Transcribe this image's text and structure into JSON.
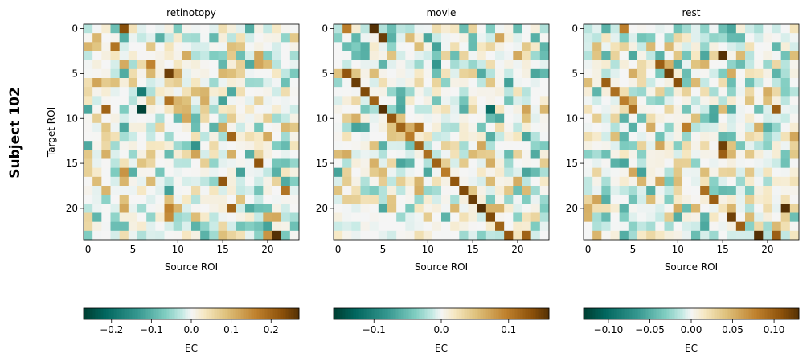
{
  "suptitle": "Subject 102",
  "chart_data": [
    {
      "type": "heatmap",
      "title": "retinotopy",
      "xlabel": "Source ROI",
      "ylabel": "Target ROI",
      "n": 24,
      "ticks": [
        0,
        5,
        10,
        15,
        20
      ],
      "vmin": -0.27,
      "vmax": 0.27,
      "colorbar": {
        "label": "EC",
        "ticks": [
          -0.2,
          -0.1,
          0.0,
          0.1,
          0.2
        ],
        "tick_labels": [
          "−0.2",
          "−0.1",
          "0.0",
          "0.1",
          "0.2"
        ]
      },
      "seed": 11,
      "strong": [
        [
          0,
          4,
          0.23
        ],
        [
          8,
          9,
          -0.21
        ],
        [
          2,
          3,
          0.18
        ],
        [
          5,
          9,
          0.25
        ],
        [
          7,
          6,
          -0.18
        ],
        [
          9,
          6,
          -0.26
        ],
        [
          9,
          2,
          0.2
        ],
        [
          8,
          9,
          0.18
        ],
        [
          12,
          16,
          0.2
        ],
        [
          13,
          12,
          -0.14
        ],
        [
          15,
          19,
          0.22
        ],
        [
          17,
          15,
          0.22
        ],
        [
          18,
          22,
          0.18
        ],
        [
          20,
          16,
          0.2
        ],
        [
          21,
          9,
          0.15
        ],
        [
          22,
          20,
          -0.12
        ],
        [
          23,
          21,
          0.27
        ],
        [
          23,
          20,
          0.14
        ],
        [
          4,
          7,
          0.16
        ],
        [
          1,
          1,
          0.1
        ],
        [
          6,
          1,
          0.12
        ],
        [
          11,
          14,
          -0.1
        ],
        [
          16,
          4,
          0.14
        ],
        [
          20,
          9,
          0.16
        ]
      ]
    },
    {
      "type": "heatmap",
      "title": "movie",
      "xlabel": "Source ROI",
      "ylabel": "",
      "n": 24,
      "ticks": [
        0,
        5,
        10,
        15,
        20
      ],
      "vmin": -0.16,
      "vmax": 0.16,
      "colorbar": {
        "label": "EC",
        "ticks": [
          -0.1,
          0.0,
          0.1
        ],
        "tick_labels": [
          "−0.1",
          "0.0",
          "0.1"
        ]
      },
      "seed": 23,
      "strong": [
        [
          0,
          4,
          0.16
        ],
        [
          1,
          5,
          0.15
        ],
        [
          0,
          1,
          0.1
        ],
        [
          5,
          1,
          0.13
        ],
        [
          6,
          2,
          0.15
        ],
        [
          7,
          3,
          0.14
        ],
        [
          8,
          4,
          0.12
        ],
        [
          9,
          5,
          0.16
        ],
        [
          9,
          17,
          -0.12
        ],
        [
          10,
          6,
          0.13
        ],
        [
          11,
          7,
          0.12
        ],
        [
          11,
          9,
          0.11
        ],
        [
          12,
          8,
          0.1
        ],
        [
          13,
          9,
          0.12
        ],
        [
          14,
          10,
          0.11
        ],
        [
          15,
          11,
          0.12
        ],
        [
          16,
          12,
          0.1
        ],
        [
          17,
          13,
          0.13
        ],
        [
          18,
          14,
          0.14
        ],
        [
          19,
          15,
          0.15
        ],
        [
          20,
          16,
          0.16
        ],
        [
          21,
          17,
          0.14
        ],
        [
          22,
          18,
          0.12
        ],
        [
          23,
          19,
          0.13
        ],
        [
          23,
          21,
          0.12
        ],
        [
          4,
          11,
          -0.08
        ]
      ]
    },
    {
      "type": "heatmap",
      "title": "rest",
      "xlabel": "Source ROI",
      "ylabel": "",
      "n": 24,
      "ticks": [
        0,
        5,
        10,
        15,
        20
      ],
      "vmin": -0.13,
      "vmax": 0.13,
      "colorbar": {
        "label": "EC",
        "ticks": [
          -0.1,
          -0.05,
          0.0,
          0.05,
          0.1
        ],
        "tick_labels": [
          "−0.10",
          "−0.05",
          "0.00",
          "0.05",
          "0.10"
        ]
      },
      "seed": 37,
      "strong": [
        [
          3,
          15,
          0.13
        ],
        [
          4,
          8,
          0.1
        ],
        [
          5,
          9,
          0.12
        ],
        [
          6,
          10,
          0.11
        ],
        [
          6,
          2,
          0.1
        ],
        [
          7,
          3,
          0.09
        ],
        [
          8,
          4,
          0.08
        ],
        [
          9,
          21,
          0.1
        ],
        [
          9,
          5,
          0.09
        ],
        [
          13,
          15,
          0.12
        ],
        [
          14,
          15,
          0.1
        ],
        [
          18,
          13,
          0.09
        ],
        [
          19,
          14,
          0.1
        ],
        [
          20,
          22,
          0.13
        ],
        [
          21,
          16,
          0.12
        ],
        [
          22,
          17,
          0.1
        ],
        [
          23,
          19,
          0.13
        ],
        [
          23,
          21,
          0.1
        ],
        [
          0,
          4,
          0.08
        ],
        [
          11,
          11,
          0.08
        ]
      ]
    }
  ]
}
